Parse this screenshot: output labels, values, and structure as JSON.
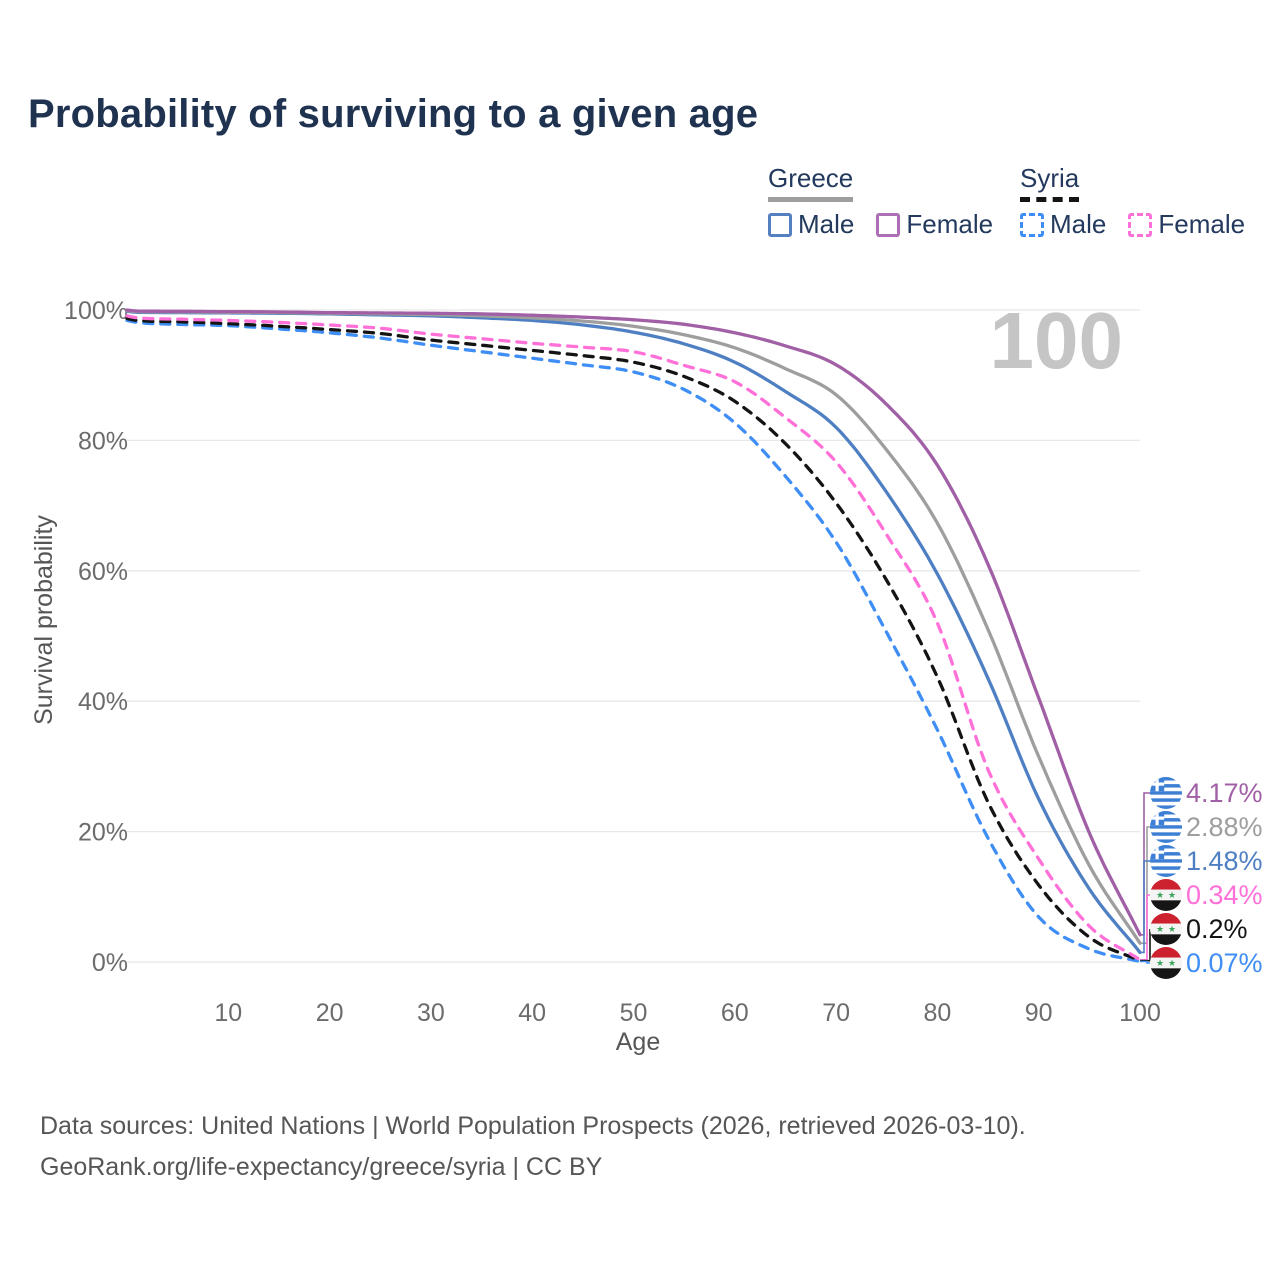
{
  "title": "Probability of surviving to a given age",
  "watermark": "100",
  "legend": {
    "groups": [
      {
        "country": "Greece",
        "line_style": "solid",
        "rule_color": "#9e9e9e",
        "items": [
          {
            "label": "Male",
            "color": "#4f7fc3"
          },
          {
            "label": "Female",
            "color": "#a86fb0"
          }
        ]
      },
      {
        "country": "Syria",
        "line_style": "dashed",
        "rule_color": "#141414",
        "items": [
          {
            "label": "Male",
            "color": "#3f8ef5"
          },
          {
            "label": "Female",
            "color": "#ff70d8"
          }
        ]
      }
    ]
  },
  "chart_data": {
    "type": "line",
    "title": "Probability of surviving to a given age",
    "xlabel": "Age",
    "ylabel": "Survival probability",
    "xlim": [
      0,
      100
    ],
    "ylim": [
      0,
      100
    ],
    "grid": "horizontal",
    "legend_position": "top-right",
    "x_ticks": [
      10,
      20,
      30,
      40,
      50,
      60,
      70,
      80,
      90,
      100
    ],
    "y_ticks": [
      0,
      20,
      40,
      60,
      80,
      100
    ],
    "y_tick_suffix": "%",
    "x": [
      0,
      1,
      5,
      10,
      15,
      20,
      25,
      30,
      35,
      40,
      45,
      50,
      55,
      60,
      65,
      70,
      75,
      80,
      85,
      90,
      95,
      100
    ],
    "series": [
      {
        "name": "Greece Female",
        "color": "#a15fa6",
        "dash": false,
        "flag": "greece",
        "end_label": "4.17%",
        "values": [
          100,
          99.85,
          99.8,
          99.75,
          99.7,
          99.6,
          99.55,
          99.5,
          99.4,
          99.2,
          98.9,
          98.5,
          97.8,
          96.5,
          94.5,
          91.6,
          85.5,
          76.2,
          61.0,
          40.5,
          19.8,
          4.17
        ]
      },
      {
        "name": "Greece Both sexes",
        "color": "#9e9e9e",
        "dash": false,
        "flag": "greece",
        "end_label": "2.88%",
        "values": [
          99.9,
          99.75,
          99.7,
          99.65,
          99.6,
          99.5,
          99.4,
          99.3,
          99.1,
          98.8,
          98.3,
          97.5,
          96.2,
          94.2,
          91.0,
          87.0,
          78.5,
          67.3,
          51.0,
          31.5,
          14.8,
          2.88
        ]
      },
      {
        "name": "Greece Male",
        "color": "#4f7fc3",
        "dash": false,
        "flag": "greece",
        "end_label": "1.48%",
        "values": [
          99.8,
          99.65,
          99.6,
          99.55,
          99.5,
          99.4,
          99.25,
          99.1,
          98.8,
          98.4,
          97.7,
          96.6,
          94.8,
          92.0,
          87.5,
          82.0,
          72.0,
          59.5,
          43.5,
          25.0,
          11.2,
          1.48
        ]
      },
      {
        "name": "Syria Female",
        "color": "#ff70d8",
        "dash": true,
        "flag": "syria",
        "end_label": "0.34%",
        "values": [
          99.1,
          98.8,
          98.6,
          98.4,
          98.1,
          97.7,
          97.2,
          96.3,
          95.6,
          94.9,
          94.3,
          93.6,
          91.5,
          89.0,
          83.5,
          76.7,
          65.5,
          52.0,
          29.5,
          15.8,
          5.5,
          0.34
        ]
      },
      {
        "name": "Syria Both sexes",
        "color": "#141414",
        "dash": true,
        "flag": "syria",
        "end_label": "0.2%",
        "values": [
          98.7,
          98.4,
          98.2,
          97.9,
          97.5,
          97.0,
          96.4,
          95.4,
          94.6,
          93.8,
          93.0,
          92.0,
          89.8,
          86.0,
          79.5,
          70.4,
          58.5,
          43.7,
          24.5,
          11.8,
          3.8,
          0.2
        ]
      },
      {
        "name": "Syria Male",
        "color": "#3f8ef5",
        "dash": true,
        "flag": "syria",
        "end_label": "0.07%",
        "values": [
          98.4,
          98.1,
          97.8,
          97.6,
          97.1,
          96.5,
          95.7,
          94.6,
          93.6,
          92.6,
          91.6,
          90.5,
          87.8,
          82.7,
          74.5,
          64.4,
          50.5,
          35.6,
          19.0,
          6.9,
          2.0,
          0.07
        ]
      }
    ]
  },
  "footer": {
    "line1": "Data sources: United Nations | World Population Prospects (2026, retrieved 2026-03-10).",
    "line2": "GeoRank.org/life-expectancy/greece/syria | CC BY"
  }
}
